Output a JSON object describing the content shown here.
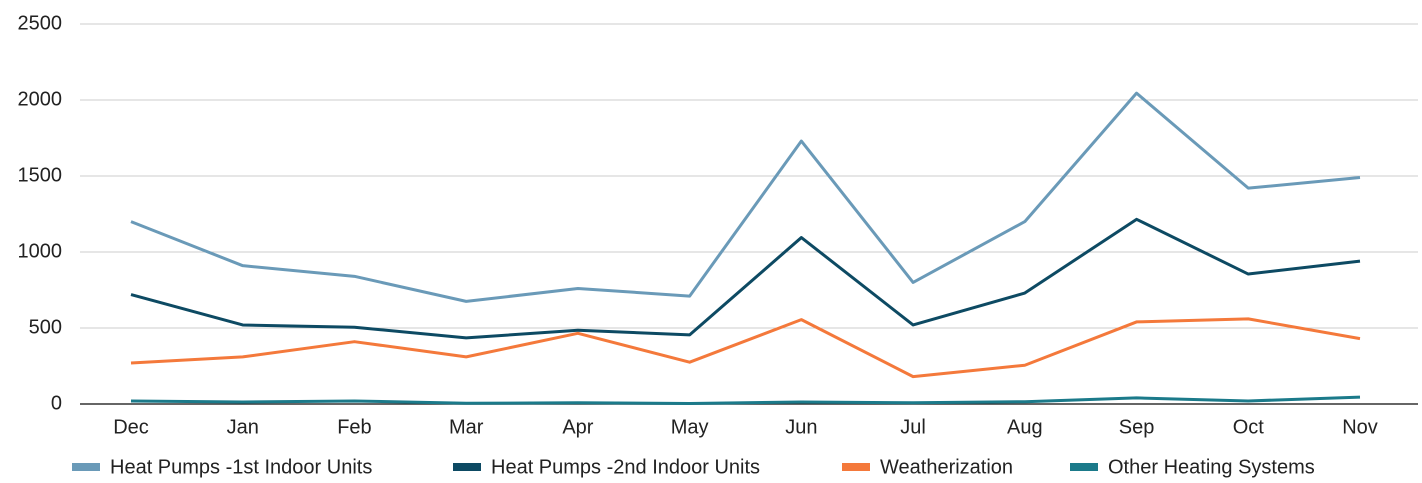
{
  "chart_data": {
    "type": "line",
    "categories": [
      "Dec",
      "Jan",
      "Feb",
      "Mar",
      "Apr",
      "May",
      "Jun",
      "Jul",
      "Aug",
      "Sep",
      "Oct",
      "Nov"
    ],
    "series": [
      {
        "name": "Heat Pumps -1st Indoor Units",
        "color": "#6a9ab8",
        "values": [
          1200,
          910,
          840,
          675,
          760,
          710,
          1730,
          800,
          1200,
          2045,
          1420,
          1490
        ]
      },
      {
        "name": "Heat Pumps -2nd Indoor Units",
        "color": "#0d4a63",
        "values": [
          720,
          520,
          505,
          435,
          485,
          455,
          1095,
          520,
          730,
          1215,
          855,
          940
        ]
      },
      {
        "name": "Weatherization",
        "color": "#f4793b",
        "values": [
          270,
          310,
          410,
          310,
          465,
          275,
          555,
          180,
          255,
          540,
          560,
          430
        ]
      },
      {
        "name": "Other Heating Systems",
        "color": "#1b7a8a",
        "values": [
          20,
          13,
          20,
          5,
          8,
          3,
          13,
          8,
          15,
          40,
          20,
          45
        ]
      }
    ],
    "ylim": [
      0,
      2500
    ],
    "yticks": [
      0,
      500,
      1000,
      1500,
      2000,
      2500
    ],
    "grid": true
  }
}
